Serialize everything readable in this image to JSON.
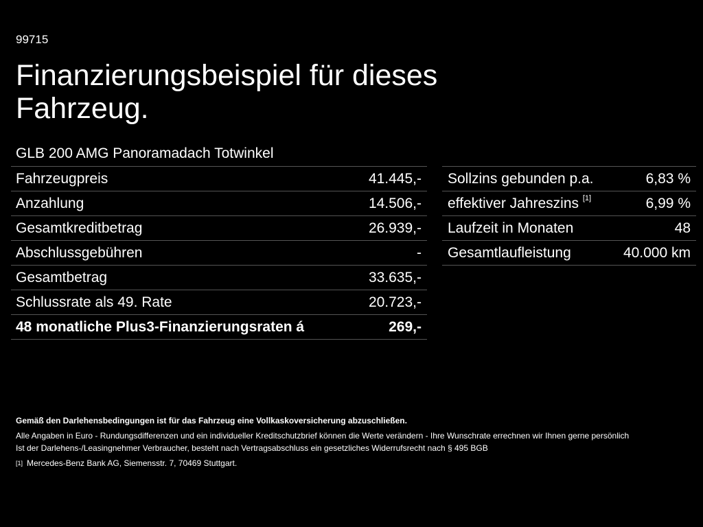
{
  "reference_number": "99715",
  "title": "Finanzierungsbeispiel für dieses Fahrzeug.",
  "model": "GLB 200 AMG Panoramadach Totwinkel",
  "left_table": [
    {
      "label": "Fahrzeugpreis",
      "value": "41.445,-"
    },
    {
      "label": "Anzahlung",
      "value": "14.506,-"
    },
    {
      "label": "Gesamtkreditbetrag",
      "value": "26.939,-"
    },
    {
      "label": "Abschlussgebühren",
      "value": "-"
    },
    {
      "label": "Gesamtbetrag",
      "value": "33.635,-"
    },
    {
      "label": "Schlussrate als 49. Rate",
      "value": "20.723,-"
    },
    {
      "label": "48 monatliche Plus3-Finanzierungsraten á",
      "value": "269,-"
    }
  ],
  "right_table": [
    {
      "label": "Sollzins gebunden p.a.",
      "value": "6,83 %"
    },
    {
      "label": "effektiver Jahreszins",
      "footnote": "[1]",
      "value": "6,99 %"
    },
    {
      "label": "Laufzeit in Monaten",
      "value": "48"
    },
    {
      "label": "Gesamtlaufleistung",
      "value": "40.000 km"
    }
  ],
  "footnotes": {
    "insurance_notice": "Gemäß den Darlehensbedingungen ist für das Fahrzeug eine Vollkaskoversicherung abzuschließen.",
    "currency_notice": "Alle Angaben in Euro - Rundungsdifferenzen und ein individueller Kreditschutzbrief können die Werte verändern - Ihre Wunschrate errechnen wir Ihnen gerne persönlich",
    "withdrawal_notice": "Ist der Darlehens-/Leasingnehmer Verbraucher, besteht nach Vertragsabschluss ein gesetzliches Widerrufsrecht nach § 495 BGB",
    "source_marker": "[1]",
    "source_text": "Mercedes-Benz Bank AG, Siemensstr. 7, 70469 Stuttgart."
  }
}
